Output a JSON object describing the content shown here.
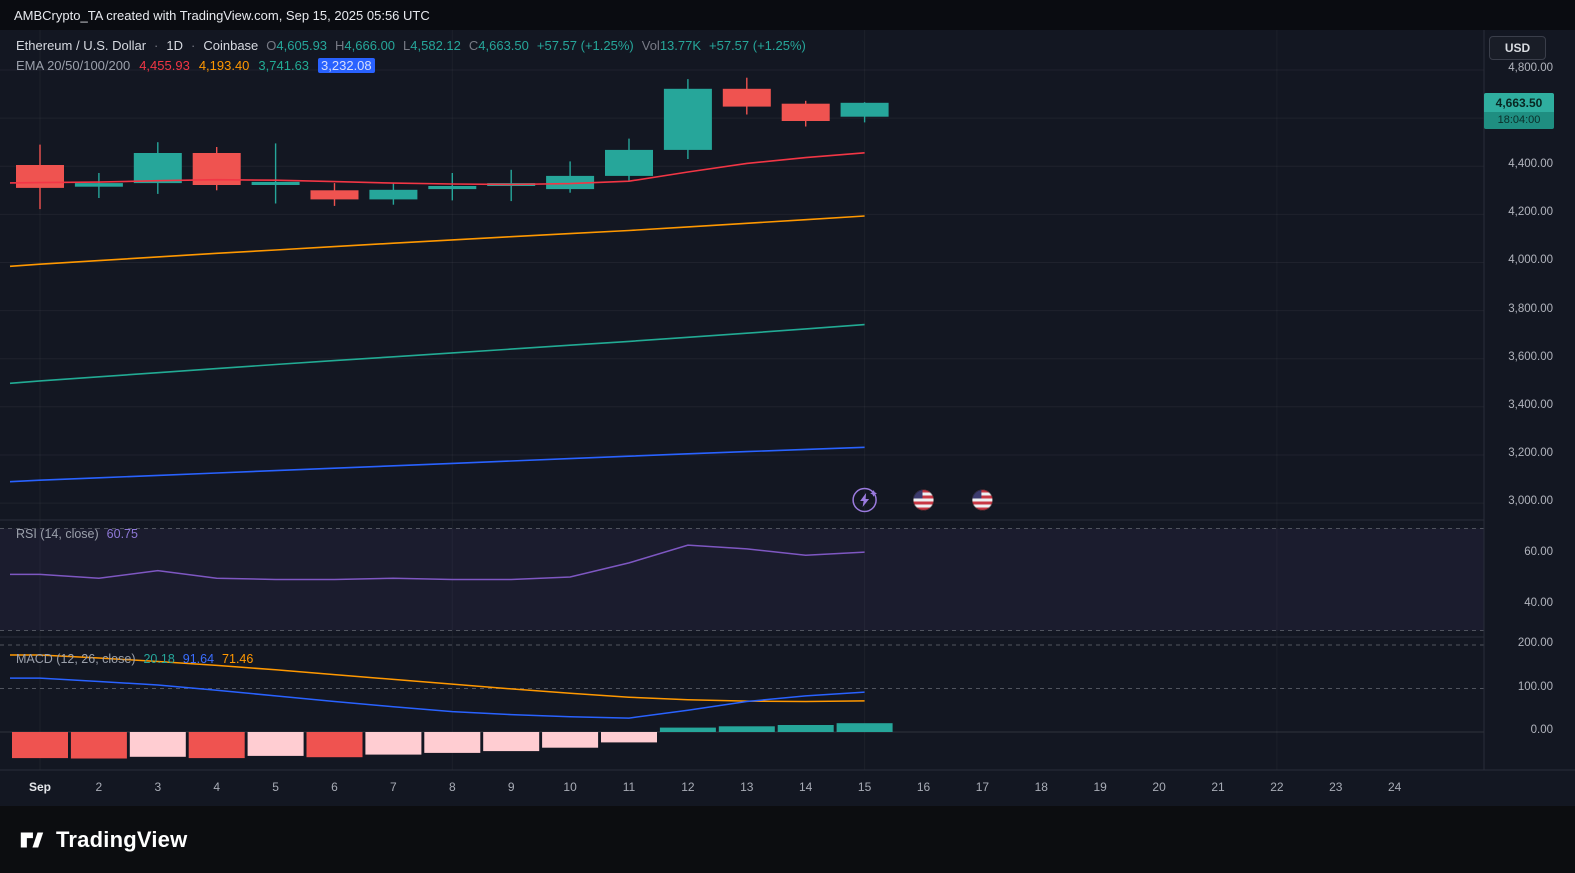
{
  "top_bar": {
    "attribution": "AMBCrypto_TA created with TradingView.com, Sep 15, 2025 05:56 UTC"
  },
  "header": {
    "symbol": "Ethereum / U.S. Dollar",
    "dot": "·",
    "interval": "1D",
    "exchange": "Coinbase",
    "o_label": "O",
    "o_value": "4,605.93",
    "h_label": "H",
    "h_value": "4,666.00",
    "l_label": "L",
    "l_value": "4,582.12",
    "c_label": "C",
    "c_value": "4,663.50",
    "change": "+57.57 (+1.25%)",
    "vol_label": "Vol",
    "vol_value": "13.77K",
    "vol_change": "+57.57 (+1.25%)",
    "ema_label": "EMA 20/50/100/200",
    "ema_values": [
      "4,455.93",
      "4,193.40",
      "3,741.63",
      "3,232.08"
    ]
  },
  "toolbar": {
    "currency_label": "USD"
  },
  "price_tag": {
    "price": "4,663.50",
    "countdown": "18:04:00"
  },
  "rsi_header": {
    "label": "RSI (14, close)",
    "value": "60.75"
  },
  "macd_header": {
    "label": "MACD (12, 26, close)",
    "hist_value": "20.18",
    "macd_value": "91.64",
    "signal_value": "71.46"
  },
  "watermark": {
    "brand": "TradingView"
  },
  "chart_data": {
    "type": "candlestick",
    "title": "Ethereum / U.S. Dollar, 1D, Coinbase",
    "up_color": "#26a69a",
    "down_color": "#ef5350",
    "x_labels": [
      "Sep",
      "2",
      "3",
      "4",
      "5",
      "6",
      "7",
      "8",
      "9",
      "10",
      "11",
      "12",
      "13",
      "14",
      "15",
      "16",
      "17",
      "18",
      "19",
      "20",
      "21",
      "22",
      "23",
      "24"
    ],
    "dates": [
      "Sep 1",
      "Sep 2",
      "Sep 3",
      "Sep 4",
      "Sep 5",
      "Sep 6",
      "Sep 7",
      "Sep 8",
      "Sep 9",
      "Sep 10",
      "Sep 11",
      "Sep 12",
      "Sep 13",
      "Sep 14",
      "Sep 15"
    ],
    "candles": {
      "open": [
        4405,
        4315,
        4330,
        4455,
        4322,
        4300,
        4262,
        4305,
        4318,
        4305,
        4360,
        4468,
        4722,
        4660,
        4605.93
      ],
      "high": [
        4490,
        4372,
        4500,
        4480,
        4495,
        4330,
        4330,
        4372,
        4385,
        4420,
        4515,
        4762,
        4768,
        4672,
        4666.0
      ],
      "low": [
        4222,
        4268,
        4285,
        4300,
        4245,
        4235,
        4240,
        4258,
        4255,
        4290,
        4340,
        4430,
        4615,
        4565,
        4582.12
      ],
      "close": [
        4310,
        4330,
        4455,
        4322,
        4335,
        4262,
        4302,
        4318,
        4330,
        4360,
        4468,
        4722,
        4648,
        4588,
        4663.5
      ]
    },
    "ema_series": [
      {
        "name": "EMA 20",
        "color": "#f23645",
        "values": [
          4332,
          4334,
          4340,
          4344,
          4342,
          4336,
          4330,
          4326,
          4324,
          4328,
          4338,
          4376,
          4412,
          4436,
          4456
        ]
      },
      {
        "name": "EMA 50",
        "color": "#ff9800",
        "values": [
          3993,
          4008,
          4023,
          4038,
          4052,
          4066,
          4080,
          4094,
          4107,
          4120,
          4133,
          4148,
          4163,
          4178,
          4193
        ]
      },
      {
        "name": "EMA 100",
        "color": "#22ab94",
        "values": [
          3508,
          3525,
          3542,
          3559,
          3576,
          3592,
          3608,
          3624,
          3640,
          3656,
          3672,
          3689,
          3706,
          3724,
          3742
        ]
      },
      {
        "name": "EMA 200",
        "color": "#2962ff",
        "values": [
          3095,
          3105,
          3115,
          3125,
          3135,
          3145,
          3155,
          3165,
          3175,
          3185,
          3195,
          3205,
          3214,
          3223,
          3232
        ]
      }
    ],
    "price_axis": {
      "ticks": [
        {
          "label": "4,800.00",
          "value": 4800
        },
        {
          "label": "4,400.00",
          "value": 4400
        },
        {
          "label": "4,200.00",
          "value": 4200
        },
        {
          "label": "4,000.00",
          "value": 4000
        },
        {
          "label": "3,800.00",
          "value": 3800
        },
        {
          "label": "3,600.00",
          "value": 3600
        },
        {
          "label": "3,400.00",
          "value": 3400
        },
        {
          "label": "3,200.00",
          "value": 3200
        },
        {
          "label": "3,000.00",
          "value": 3000
        }
      ],
      "grid_values": [
        4800,
        4600,
        4400,
        4200,
        4000,
        3800,
        3600,
        3400,
        3200,
        3000
      ]
    },
    "rsi": {
      "color": "#7e57c2",
      "values": [
        52,
        50.5,
        53.5,
        50.5,
        50,
        50,
        50.5,
        50,
        50,
        51,
        56.5,
        63.5,
        62,
        59.5,
        60.75
      ],
      "levels": [
        70,
        30
      ],
      "ticks": [
        {
          "label": "60.00",
          "value": 60
        },
        {
          "label": "40.00",
          "value": 40
        }
      ],
      "last": 60.75
    },
    "macd": {
      "macd_color": "#2962ff",
      "signal_color": "#ff9800",
      "macd": [
        124,
        116,
        108,
        96,
        83,
        70,
        58,
        47,
        40,
        35,
        32,
        50,
        70,
        83,
        91.64
      ],
      "signal": [
        177,
        170,
        162,
        153,
        143,
        132,
        121,
        110,
        99,
        89,
        80,
        74,
        71,
        70,
        71.46
      ],
      "histogram": [
        -60,
        -61,
        -57,
        -60,
        -55,
        -58,
        -52,
        -48,
        -44,
        -36,
        -24,
        10,
        13,
        16,
        20.18
      ],
      "ticks": [
        {
          "label": "200.00",
          "value": 200
        },
        {
          "label": "100.00",
          "value": 100
        },
        {
          "label": "0.00",
          "value": 0
        }
      ],
      "hist_colors": {
        "grow_above": "#26a69a",
        "fall_above": "#b2dfdb",
        "grow_below": "#ffcdd2",
        "fall_below": "#ef5350"
      }
    },
    "event_markers": [
      {
        "icon": "lightning-icon",
        "index": 14
      },
      {
        "icon": "us-flag-icon",
        "index": 15
      },
      {
        "icon": "us-flag-icon",
        "index": 16
      }
    ]
  }
}
